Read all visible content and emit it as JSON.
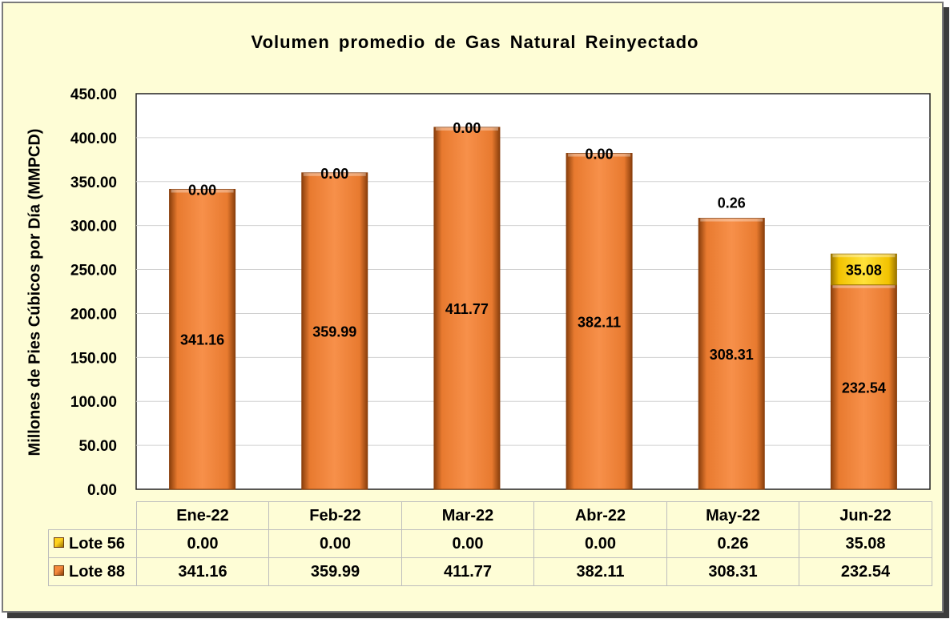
{
  "chart_data": {
    "type": "bar",
    "stacked": true,
    "title": "Volumen promedio de Gas Natural Reinyectado",
    "ylabel": "Millones de Pies Cúbicos por Día (MMPCD)",
    "xlabel": "",
    "ylim": [
      0,
      450
    ],
    "yticks": [
      "0.00",
      "50.00",
      "100.00",
      "150.00",
      "200.00",
      "250.00",
      "300.00",
      "350.00",
      "400.00",
      "450.00"
    ],
    "grid": true,
    "categories": [
      "Ene-22",
      "Feb-22",
      "Mar-22",
      "Abr-22",
      "May-22",
      "Jun-22"
    ],
    "series": [
      {
        "name": "Lote 88",
        "color": "#f58a3c",
        "values": [
          341.16,
          359.99,
          411.77,
          382.11,
          308.31,
          232.54
        ],
        "labels": [
          "341.16",
          "359.99",
          "411.77",
          "382.11",
          "308.31",
          "232.54"
        ]
      },
      {
        "name": "Lote 56",
        "color": "#ffd21e",
        "values": [
          0.0,
          0.0,
          0.0,
          0.0,
          0.26,
          35.08
        ],
        "labels": [
          "0.00",
          "0.00",
          "0.00",
          "0.00",
          "0.26",
          "35.08"
        ]
      }
    ],
    "data_table": true,
    "colors": {
      "background": "#fefdd6",
      "plot_background": "#ffffff",
      "border": "#7a7a7a"
    }
  }
}
